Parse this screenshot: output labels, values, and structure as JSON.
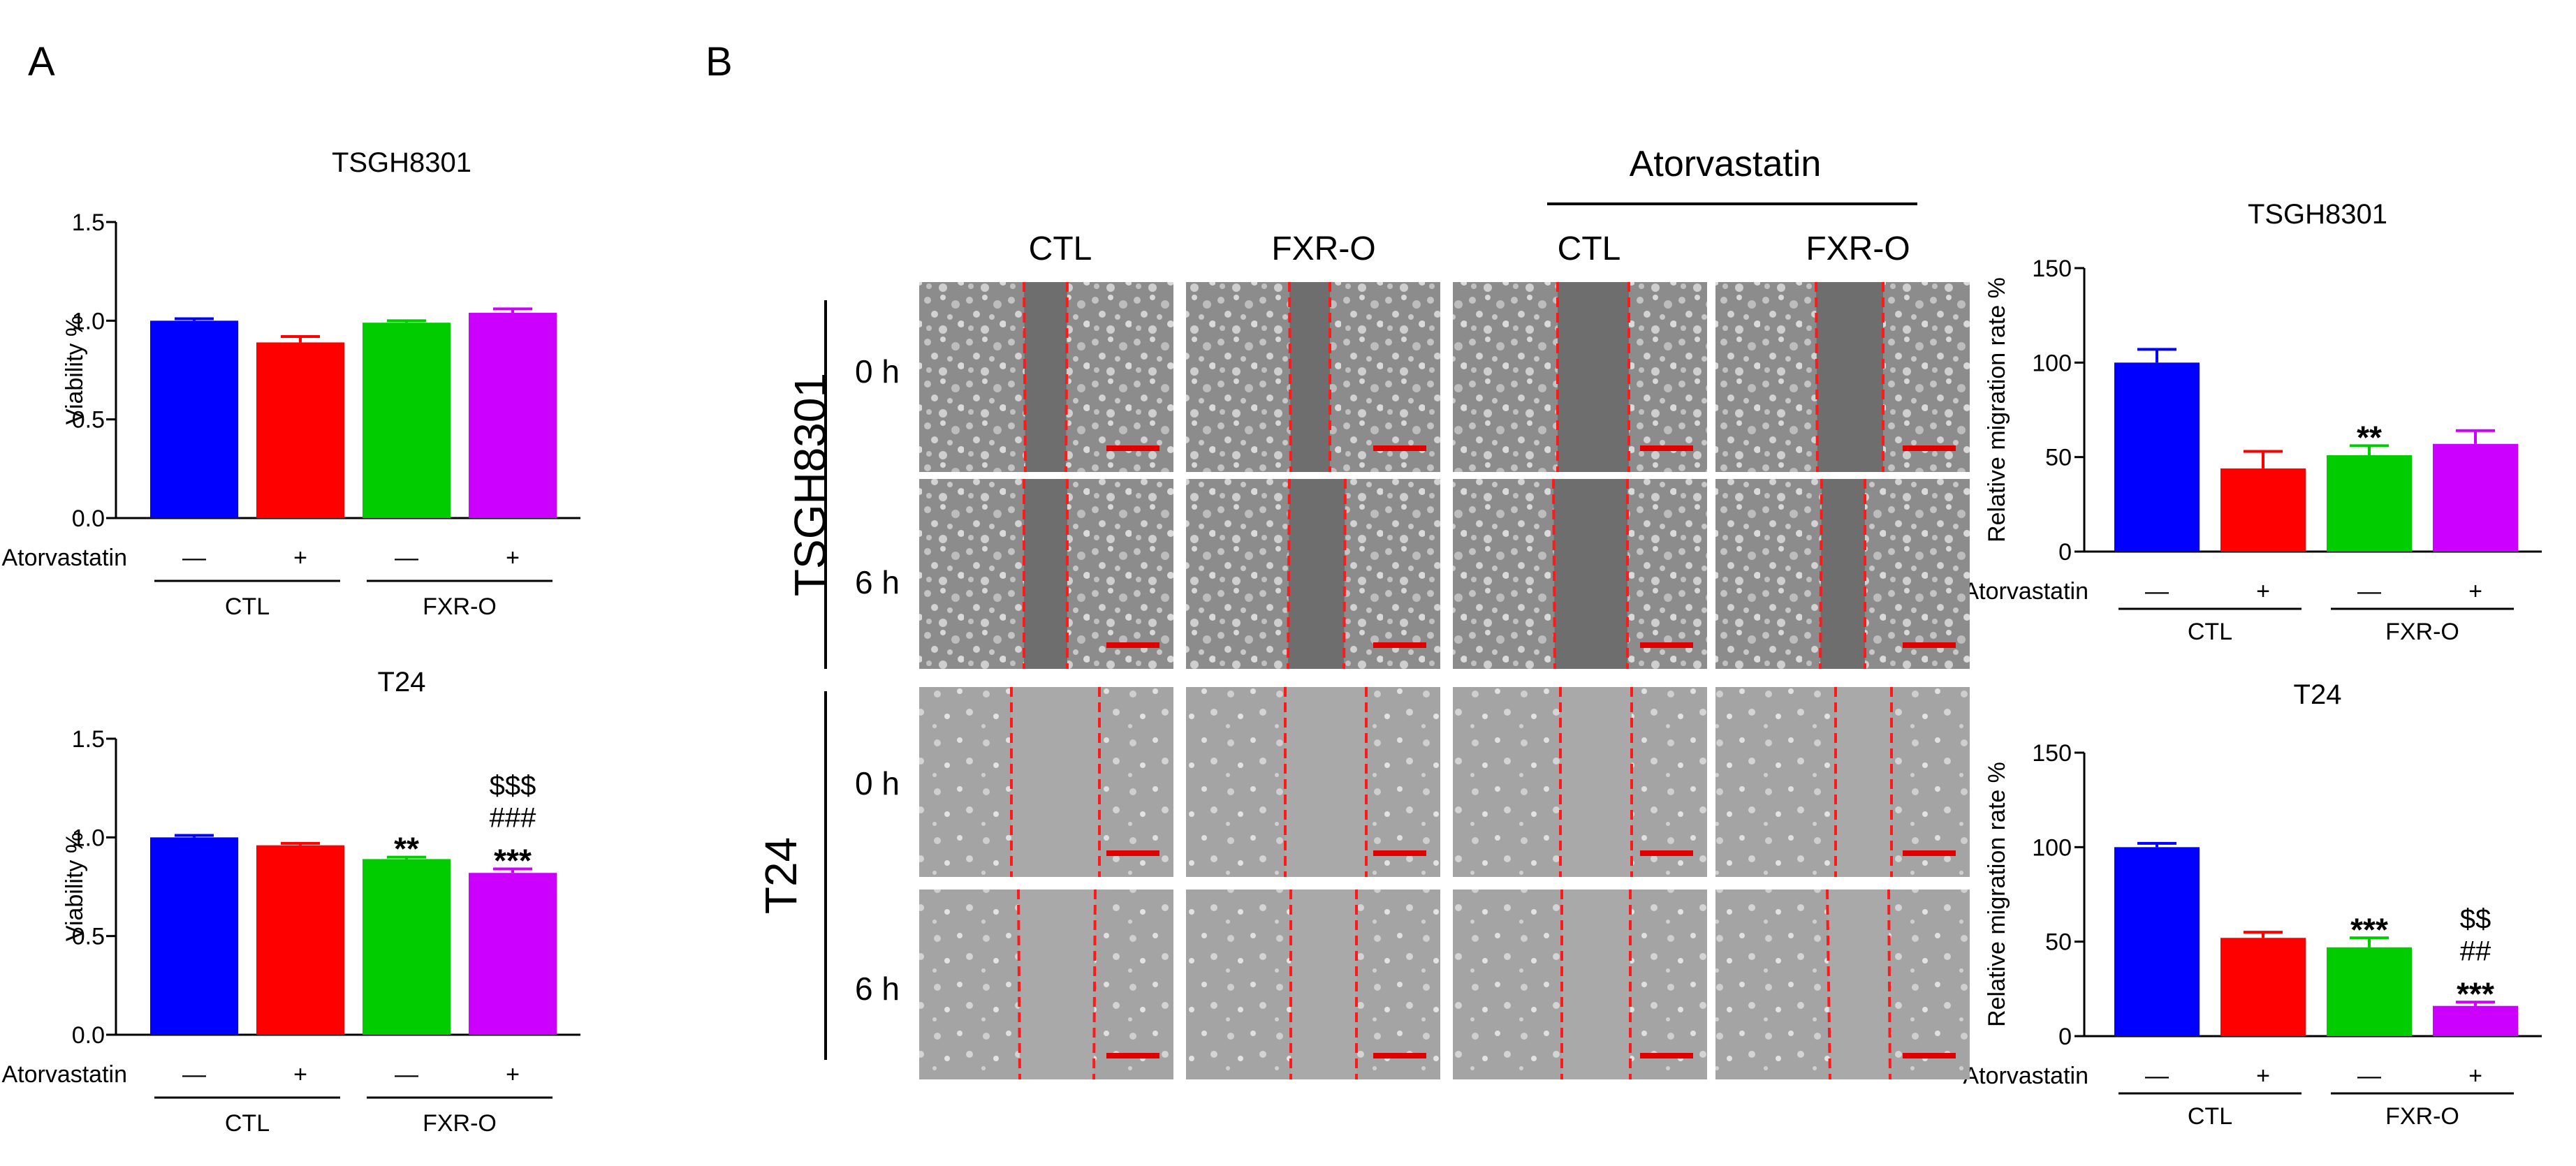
{
  "panels": {
    "a_label": "A",
    "b_label": "B"
  },
  "micrographs": {
    "treatment_label": "Atorvastatin",
    "columns": [
      "CTL",
      "FXR-O",
      "CTL",
      "FXR-O"
    ],
    "cell_lines": [
      "TSGH8301",
      "T24"
    ],
    "times": [
      "0 h",
      "6 h",
      "0 h",
      "6 h"
    ]
  },
  "chart_data": [
    {
      "type": "bar",
      "title": "TSGH8301",
      "ylabel": "Viability %",
      "ylim": [
        0,
        1.5
      ],
      "yticks": [
        "0.0",
        "0.5",
        "1.0",
        "1.5"
      ],
      "row_label": "Atorvastatin",
      "treatment": [
        "—",
        "+",
        "—",
        "+"
      ],
      "groups": [
        "CTL",
        "FXR-O"
      ],
      "values": [
        1.0,
        0.89,
        0.99,
        1.04
      ],
      "errors": [
        0.01,
        0.03,
        0.01,
        0.02
      ],
      "colors": [
        "#0000ff",
        "#ff0000",
        "#00cc00",
        "#cc00ff"
      ],
      "annotations": [
        [],
        [],
        [],
        []
      ]
    },
    {
      "type": "bar",
      "title": "T24",
      "ylabel": "Viability %",
      "ylim": [
        0,
        1.5
      ],
      "yticks": [
        "0.0",
        "0.5",
        "1.0",
        "1.5"
      ],
      "row_label": "Atorvastatin",
      "treatment": [
        "—",
        "+",
        "—",
        "+"
      ],
      "groups": [
        "CTL",
        "FXR-O"
      ],
      "values": [
        1.0,
        0.96,
        0.89,
        0.82
      ],
      "errors": [
        0.01,
        0.01,
        0.01,
        0.02
      ],
      "colors": [
        "#0000ff",
        "#ff0000",
        "#00cc00",
        "#cc00ff"
      ],
      "annotations": [
        [],
        [],
        [
          "**"
        ],
        [
          "$$$",
          "###",
          "***"
        ]
      ]
    },
    {
      "type": "bar",
      "title": "TSGH8301",
      "ylabel": "Relative migration rate %",
      "ylim": [
        0,
        150
      ],
      "yticks": [
        "0",
        "50",
        "100",
        "150"
      ],
      "row_label": "Atorvastatin",
      "treatment": [
        "—",
        "+",
        "—",
        "+"
      ],
      "groups": [
        "CTL",
        "FXR-O"
      ],
      "values": [
        100,
        44,
        51,
        57
      ],
      "errors": [
        7,
        9,
        5,
        7
      ],
      "colors": [
        "#0000ff",
        "#ff0000",
        "#00cc00",
        "#cc00ff"
      ],
      "annotations": [
        [],
        [],
        [
          "**"
        ],
        []
      ]
    },
    {
      "type": "bar",
      "title": "T24",
      "ylabel": "Relative migration rate %",
      "ylim": [
        0,
        150
      ],
      "yticks": [
        "0",
        "50",
        "100",
        "150"
      ],
      "row_label": "Atorvastatin",
      "treatment": [
        "—",
        "+",
        "—",
        "+"
      ],
      "groups": [
        "CTL",
        "FXR-O"
      ],
      "values": [
        100,
        52,
        47,
        16
      ],
      "errors": [
        2,
        3,
        5,
        2
      ],
      "colors": [
        "#0000ff",
        "#ff0000",
        "#00cc00",
        "#cc00ff"
      ],
      "annotations": [
        [],
        [],
        [
          "***"
        ],
        [
          "$$",
          "##",
          "***"
        ]
      ]
    }
  ]
}
